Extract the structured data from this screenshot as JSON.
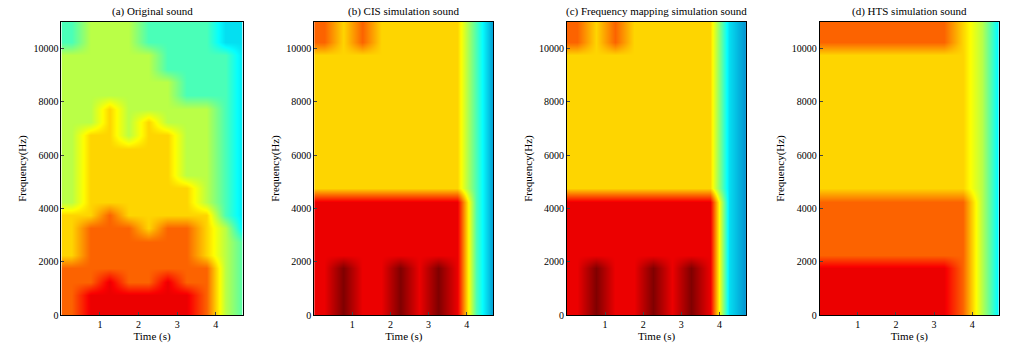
{
  "chart_data": [
    {
      "type": "heatmap",
      "title": "(a) Original sound",
      "x_label": "Time (s)",
      "y_label": "Frequency(Hz)",
      "xlim": [
        0,
        4.7
      ],
      "ylim": [
        0,
        11000
      ],
      "xticks": [
        1,
        2,
        3,
        4
      ],
      "yticks": [
        0,
        2000,
        4000,
        6000,
        8000,
        10000
      ],
      "color_range": [
        0,
        9
      ],
      "x": [
        0.25,
        0.75,
        1.25,
        1.75,
        2.25,
        2.75,
        3.25,
        3.75,
        4.25,
        4.75
      ],
      "y": [
        250,
        750,
        1250,
        1750,
        2250,
        2750,
        3250,
        3750,
        4250,
        4750,
        5250,
        5750,
        6250,
        6750,
        7250,
        7750,
        8250,
        8750,
        9250,
        9750,
        10250,
        10750
      ],
      "cells": [
        [
          7,
          8,
          8,
          8,
          8,
          8,
          8,
          7,
          5,
          4
        ],
        [
          7,
          8,
          8,
          8,
          8,
          8,
          8,
          7,
          5,
          4
        ],
        [
          7,
          7,
          8,
          7,
          7,
          8,
          7,
          7,
          5,
          4
        ],
        [
          7,
          7,
          7,
          7,
          7,
          7,
          7,
          7,
          5,
          4
        ],
        [
          6,
          7,
          7,
          7,
          7,
          7,
          7,
          6,
          5,
          4
        ],
        [
          6,
          7,
          7,
          7,
          7,
          7,
          7,
          6,
          5,
          4
        ],
        [
          6,
          7,
          7,
          7,
          6,
          7,
          7,
          6,
          5,
          3
        ],
        [
          6,
          6,
          7,
          6,
          6,
          6,
          6,
          6,
          4,
          3
        ],
        [
          5,
          6,
          6,
          6,
          6,
          6,
          6,
          5,
          4,
          3
        ],
        [
          5,
          6,
          6,
          6,
          6,
          6,
          6,
          5,
          4,
          3
        ],
        [
          5,
          6,
          6,
          6,
          6,
          6,
          5,
          5,
          4,
          3
        ],
        [
          5,
          6,
          6,
          6,
          6,
          6,
          5,
          5,
          4,
          3
        ],
        [
          5,
          6,
          6,
          6,
          6,
          6,
          5,
          5,
          4,
          3
        ],
        [
          5,
          6,
          6,
          5,
          6,
          6,
          5,
          5,
          4,
          3
        ],
        [
          5,
          5,
          6,
          5,
          6,
          5,
          5,
          5,
          4,
          3
        ],
        [
          5,
          5,
          6,
          5,
          5,
          5,
          5,
          5,
          4,
          3
        ],
        [
          5,
          5,
          5,
          5,
          5,
          5,
          4,
          4,
          4,
          3
        ],
        [
          5,
          5,
          5,
          5,
          5,
          5,
          4,
          4,
          4,
          3
        ],
        [
          5,
          5,
          5,
          5,
          5,
          4,
          4,
          4,
          4,
          3
        ],
        [
          5,
          5,
          5,
          5,
          5,
          4,
          4,
          4,
          4,
          3
        ],
        [
          4,
          5,
          5,
          5,
          4,
          4,
          4,
          4,
          3,
          3
        ],
        [
          4,
          5,
          5,
          5,
          4,
          4,
          4,
          4,
          3,
          3
        ]
      ]
    },
    {
      "type": "heatmap",
      "title": "(b) CIS simulation sound",
      "x_label": "Time (s)",
      "y_label": "Frequency(Hz)",
      "xlim": [
        0,
        4.7
      ],
      "ylim": [
        0,
        11000
      ],
      "xticks": [
        1,
        2,
        3,
        4
      ],
      "yticks": [
        0,
        2000,
        4000,
        6000,
        8000,
        10000
      ],
      "color_range": [
        0,
        9
      ],
      "x": [
        0.25,
        0.75,
        1.25,
        1.75,
        2.25,
        2.75,
        3.25,
        3.75,
        4.25,
        4.75
      ],
      "y": [
        250,
        750,
        1250,
        1750,
        2250,
        2750,
        3250,
        3750,
        4250,
        4750,
        5250,
        5750,
        6250,
        6750,
        7250,
        7750,
        8250,
        8750,
        9250,
        9750,
        10250,
        10750
      ],
      "cells": [
        [
          8,
          9,
          8,
          8,
          9,
          8,
          9,
          8,
          4,
          2
        ],
        [
          8,
          9,
          8,
          8,
          9,
          8,
          9,
          8,
          4,
          2
        ],
        [
          8,
          9,
          8,
          8,
          9,
          8,
          9,
          8,
          4,
          2
        ],
        [
          8,
          9,
          8,
          8,
          9,
          8,
          9,
          8,
          4,
          2
        ],
        [
          8,
          8,
          8,
          8,
          8,
          8,
          8,
          8,
          4,
          2
        ],
        [
          8,
          8,
          8,
          8,
          8,
          8,
          8,
          8,
          4,
          2
        ],
        [
          8,
          8,
          8,
          8,
          8,
          8,
          8,
          8,
          4,
          2
        ],
        [
          8,
          8,
          8,
          8,
          8,
          8,
          8,
          8,
          4,
          2
        ],
        [
          8,
          8,
          8,
          8,
          8,
          8,
          8,
          8,
          4,
          2
        ],
        [
          6,
          6,
          6,
          6,
          6,
          6,
          6,
          6,
          4,
          2
        ],
        [
          6,
          6,
          6,
          6,
          6,
          6,
          6,
          6,
          4,
          2
        ],
        [
          6,
          6,
          6,
          6,
          6,
          6,
          6,
          6,
          4,
          2
        ],
        [
          6,
          6,
          6,
          6,
          6,
          6,
          6,
          6,
          4,
          2
        ],
        [
          6,
          6,
          6,
          6,
          6,
          6,
          6,
          6,
          4,
          2
        ],
        [
          6,
          6,
          6,
          6,
          6,
          6,
          6,
          6,
          4,
          2
        ],
        [
          6,
          6,
          6,
          6,
          6,
          6,
          6,
          6,
          4,
          2
        ],
        [
          6,
          6,
          6,
          6,
          6,
          6,
          6,
          6,
          4,
          2
        ],
        [
          6,
          6,
          6,
          6,
          6,
          6,
          6,
          6,
          4,
          2
        ],
        [
          6,
          6,
          6,
          6,
          6,
          6,
          6,
          6,
          4,
          2
        ],
        [
          6,
          6,
          6,
          6,
          6,
          6,
          6,
          6,
          4,
          2
        ],
        [
          7,
          6,
          7,
          6,
          6,
          6,
          6,
          6,
          4,
          2
        ],
        [
          7,
          6,
          7,
          6,
          6,
          6,
          6,
          6,
          4,
          2
        ]
      ]
    },
    {
      "type": "heatmap",
      "title": "(c) Frequency mapping simulation sound",
      "x_label": "Time (s)",
      "y_label": "Frequency(Hz)",
      "xlim": [
        0,
        4.7
      ],
      "ylim": [
        0,
        11000
      ],
      "xticks": [
        1,
        2,
        3,
        4
      ],
      "yticks": [
        0,
        2000,
        4000,
        6000,
        8000,
        10000
      ],
      "color_range": [
        0,
        9
      ],
      "x": [
        0.25,
        0.75,
        1.25,
        1.75,
        2.25,
        2.75,
        3.25,
        3.75,
        4.25,
        4.75
      ],
      "y": [
        250,
        750,
        1250,
        1750,
        2250,
        2750,
        3250,
        3750,
        4250,
        4750,
        5250,
        5750,
        6250,
        6750,
        7250,
        7750,
        8250,
        8750,
        9250,
        9750,
        10250,
        10750
      ],
      "cells": [
        [
          8,
          9,
          8,
          8,
          9,
          8,
          9,
          8,
          3,
          2
        ],
        [
          8,
          9,
          8,
          8,
          9,
          8,
          9,
          8,
          3,
          2
        ],
        [
          8,
          9,
          8,
          8,
          9,
          8,
          9,
          8,
          3,
          2
        ],
        [
          8,
          9,
          8,
          8,
          9,
          8,
          9,
          8,
          3,
          2
        ],
        [
          8,
          8,
          8,
          8,
          8,
          8,
          8,
          8,
          3,
          2
        ],
        [
          8,
          8,
          8,
          8,
          8,
          8,
          8,
          8,
          3,
          2
        ],
        [
          8,
          8,
          8,
          8,
          8,
          8,
          8,
          8,
          3,
          2
        ],
        [
          8,
          8,
          8,
          8,
          8,
          8,
          8,
          8,
          3,
          2
        ],
        [
          8,
          8,
          8,
          8,
          8,
          8,
          8,
          8,
          3,
          2
        ],
        [
          6,
          6,
          6,
          6,
          6,
          6,
          6,
          6,
          3,
          2
        ],
        [
          6,
          6,
          6,
          6,
          6,
          6,
          6,
          6,
          3,
          2
        ],
        [
          6,
          6,
          6,
          6,
          6,
          6,
          6,
          6,
          3,
          2
        ],
        [
          6,
          6,
          6,
          6,
          6,
          6,
          6,
          6,
          3,
          2
        ],
        [
          6,
          6,
          6,
          6,
          6,
          6,
          6,
          6,
          3,
          2
        ],
        [
          6,
          6,
          6,
          6,
          6,
          6,
          6,
          6,
          3,
          2
        ],
        [
          6,
          6,
          6,
          6,
          6,
          6,
          6,
          6,
          3,
          2
        ],
        [
          6,
          6,
          6,
          6,
          6,
          6,
          6,
          6,
          3,
          2
        ],
        [
          6,
          6,
          6,
          6,
          6,
          6,
          6,
          6,
          3,
          2
        ],
        [
          6,
          6,
          6,
          6,
          6,
          6,
          6,
          6,
          3,
          2
        ],
        [
          6,
          6,
          6,
          6,
          6,
          6,
          6,
          6,
          3,
          2
        ],
        [
          7,
          6,
          7,
          6,
          6,
          6,
          6,
          6,
          3,
          2
        ],
        [
          7,
          6,
          7,
          6,
          6,
          6,
          6,
          6,
          3,
          2
        ]
      ]
    },
    {
      "type": "heatmap",
      "title": "(d) HTS simulation sound",
      "x_label": "Time (s)",
      "y_label": "Frequency(Hz)",
      "xlim": [
        0,
        4.7
      ],
      "ylim": [
        0,
        11000
      ],
      "xticks": [
        1,
        2,
        3,
        4
      ],
      "yticks": [
        0,
        2000,
        4000,
        6000,
        8000,
        10000
      ],
      "color_range": [
        0,
        9
      ],
      "x": [
        0.25,
        0.75,
        1.25,
        1.75,
        2.25,
        2.75,
        3.25,
        3.75,
        4.25,
        4.75
      ],
      "y": [
        250,
        750,
        1250,
        1750,
        2250,
        2750,
        3250,
        3750,
        4250,
        4750,
        5250,
        5750,
        6250,
        6750,
        7250,
        7750,
        8250,
        8750,
        9250,
        9750,
        10250,
        10750
      ],
      "cells": [
        [
          8,
          8,
          8,
          8,
          8,
          8,
          8,
          7,
          5,
          3
        ],
        [
          8,
          8,
          8,
          8,
          8,
          8,
          8,
          7,
          5,
          3
        ],
        [
          8,
          8,
          8,
          8,
          8,
          8,
          8,
          7,
          5,
          3
        ],
        [
          8,
          8,
          8,
          8,
          8,
          8,
          8,
          7,
          5,
          3
        ],
        [
          7,
          7,
          7,
          7,
          7,
          7,
          7,
          7,
          5,
          3
        ],
        [
          7,
          7,
          7,
          7,
          7,
          7,
          7,
          7,
          5,
          3
        ],
        [
          7,
          7,
          7,
          7,
          7,
          7,
          7,
          7,
          5,
          3
        ],
        [
          7,
          7,
          7,
          7,
          7,
          7,
          7,
          7,
          5,
          3
        ],
        [
          7,
          7,
          7,
          7,
          7,
          7,
          7,
          7,
          5,
          3
        ],
        [
          6,
          6,
          6,
          6,
          6,
          6,
          6,
          6,
          5,
          3
        ],
        [
          6,
          6,
          6,
          6,
          6,
          6,
          6,
          6,
          5,
          3
        ],
        [
          6,
          6,
          6,
          6,
          6,
          6,
          6,
          6,
          5,
          3
        ],
        [
          6,
          6,
          6,
          6,
          6,
          6,
          6,
          6,
          5,
          3
        ],
        [
          6,
          6,
          6,
          6,
          6,
          6,
          6,
          6,
          5,
          3
        ],
        [
          6,
          6,
          6,
          6,
          6,
          6,
          6,
          6,
          5,
          3
        ],
        [
          6,
          6,
          6,
          6,
          6,
          6,
          6,
          6,
          5,
          3
        ],
        [
          6,
          6,
          6,
          6,
          6,
          6,
          6,
          6,
          5,
          3
        ],
        [
          6,
          6,
          6,
          6,
          6,
          6,
          6,
          6,
          5,
          3
        ],
        [
          6,
          6,
          6,
          6,
          6,
          6,
          6,
          6,
          5,
          3
        ],
        [
          6,
          6,
          6,
          6,
          6,
          6,
          6,
          6,
          5,
          3
        ],
        [
          7,
          7,
          7,
          7,
          7,
          7,
          7,
          6,
          5,
          3
        ],
        [
          7,
          7,
          7,
          7,
          7,
          7,
          7,
          6,
          5,
          3
        ]
      ]
    }
  ]
}
